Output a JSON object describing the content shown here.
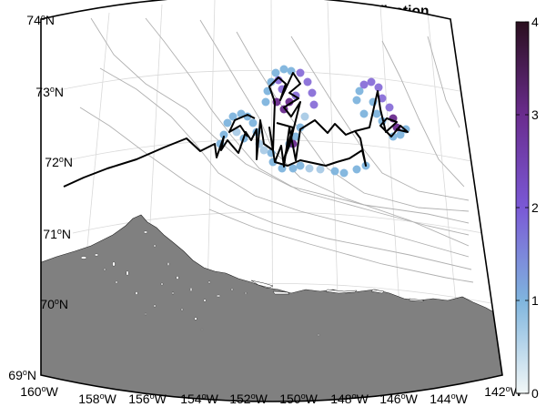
{
  "title": "Automated S-band Radar Sea Ice Classification",
  "latitude_labels": [
    {
      "deg": "74",
      "hemi": "N"
    },
    {
      "deg": "73",
      "hemi": "N"
    },
    {
      "deg": "72",
      "hemi": "N"
    },
    {
      "deg": "71",
      "hemi": "N"
    },
    {
      "deg": "70",
      "hemi": "N"
    },
    {
      "deg": "69",
      "hemi": "N"
    }
  ],
  "longitude_labels": [
    {
      "deg": "160",
      "hemi": "W"
    },
    {
      "deg": "158",
      "hemi": "W"
    },
    {
      "deg": "156",
      "hemi": "W"
    },
    {
      "deg": "154",
      "hemi": "W"
    },
    {
      "deg": "152",
      "hemi": "W"
    },
    {
      "deg": "150",
      "hemi": "W"
    },
    {
      "deg": "148",
      "hemi": "W"
    },
    {
      "deg": "146",
      "hemi": "W"
    },
    {
      "deg": "144",
      "hemi": "W"
    },
    {
      "deg": "142",
      "hemi": "W"
    }
  ],
  "colorbar": {
    "min": 0,
    "max": 4,
    "tick_labels": [
      "0",
      "1",
      "2",
      "3",
      "4"
    ],
    "colors": [
      "#f2f7f7",
      "#7fb5de",
      "#7a59d6",
      "#6a2c8e",
      "#2a0f1e"
    ]
  },
  "colors": {
    "land": "#808080",
    "ship_track": "#000000",
    "bathymetry": "#b0b0b0",
    "graticule": "#d9d9d9"
  }
}
